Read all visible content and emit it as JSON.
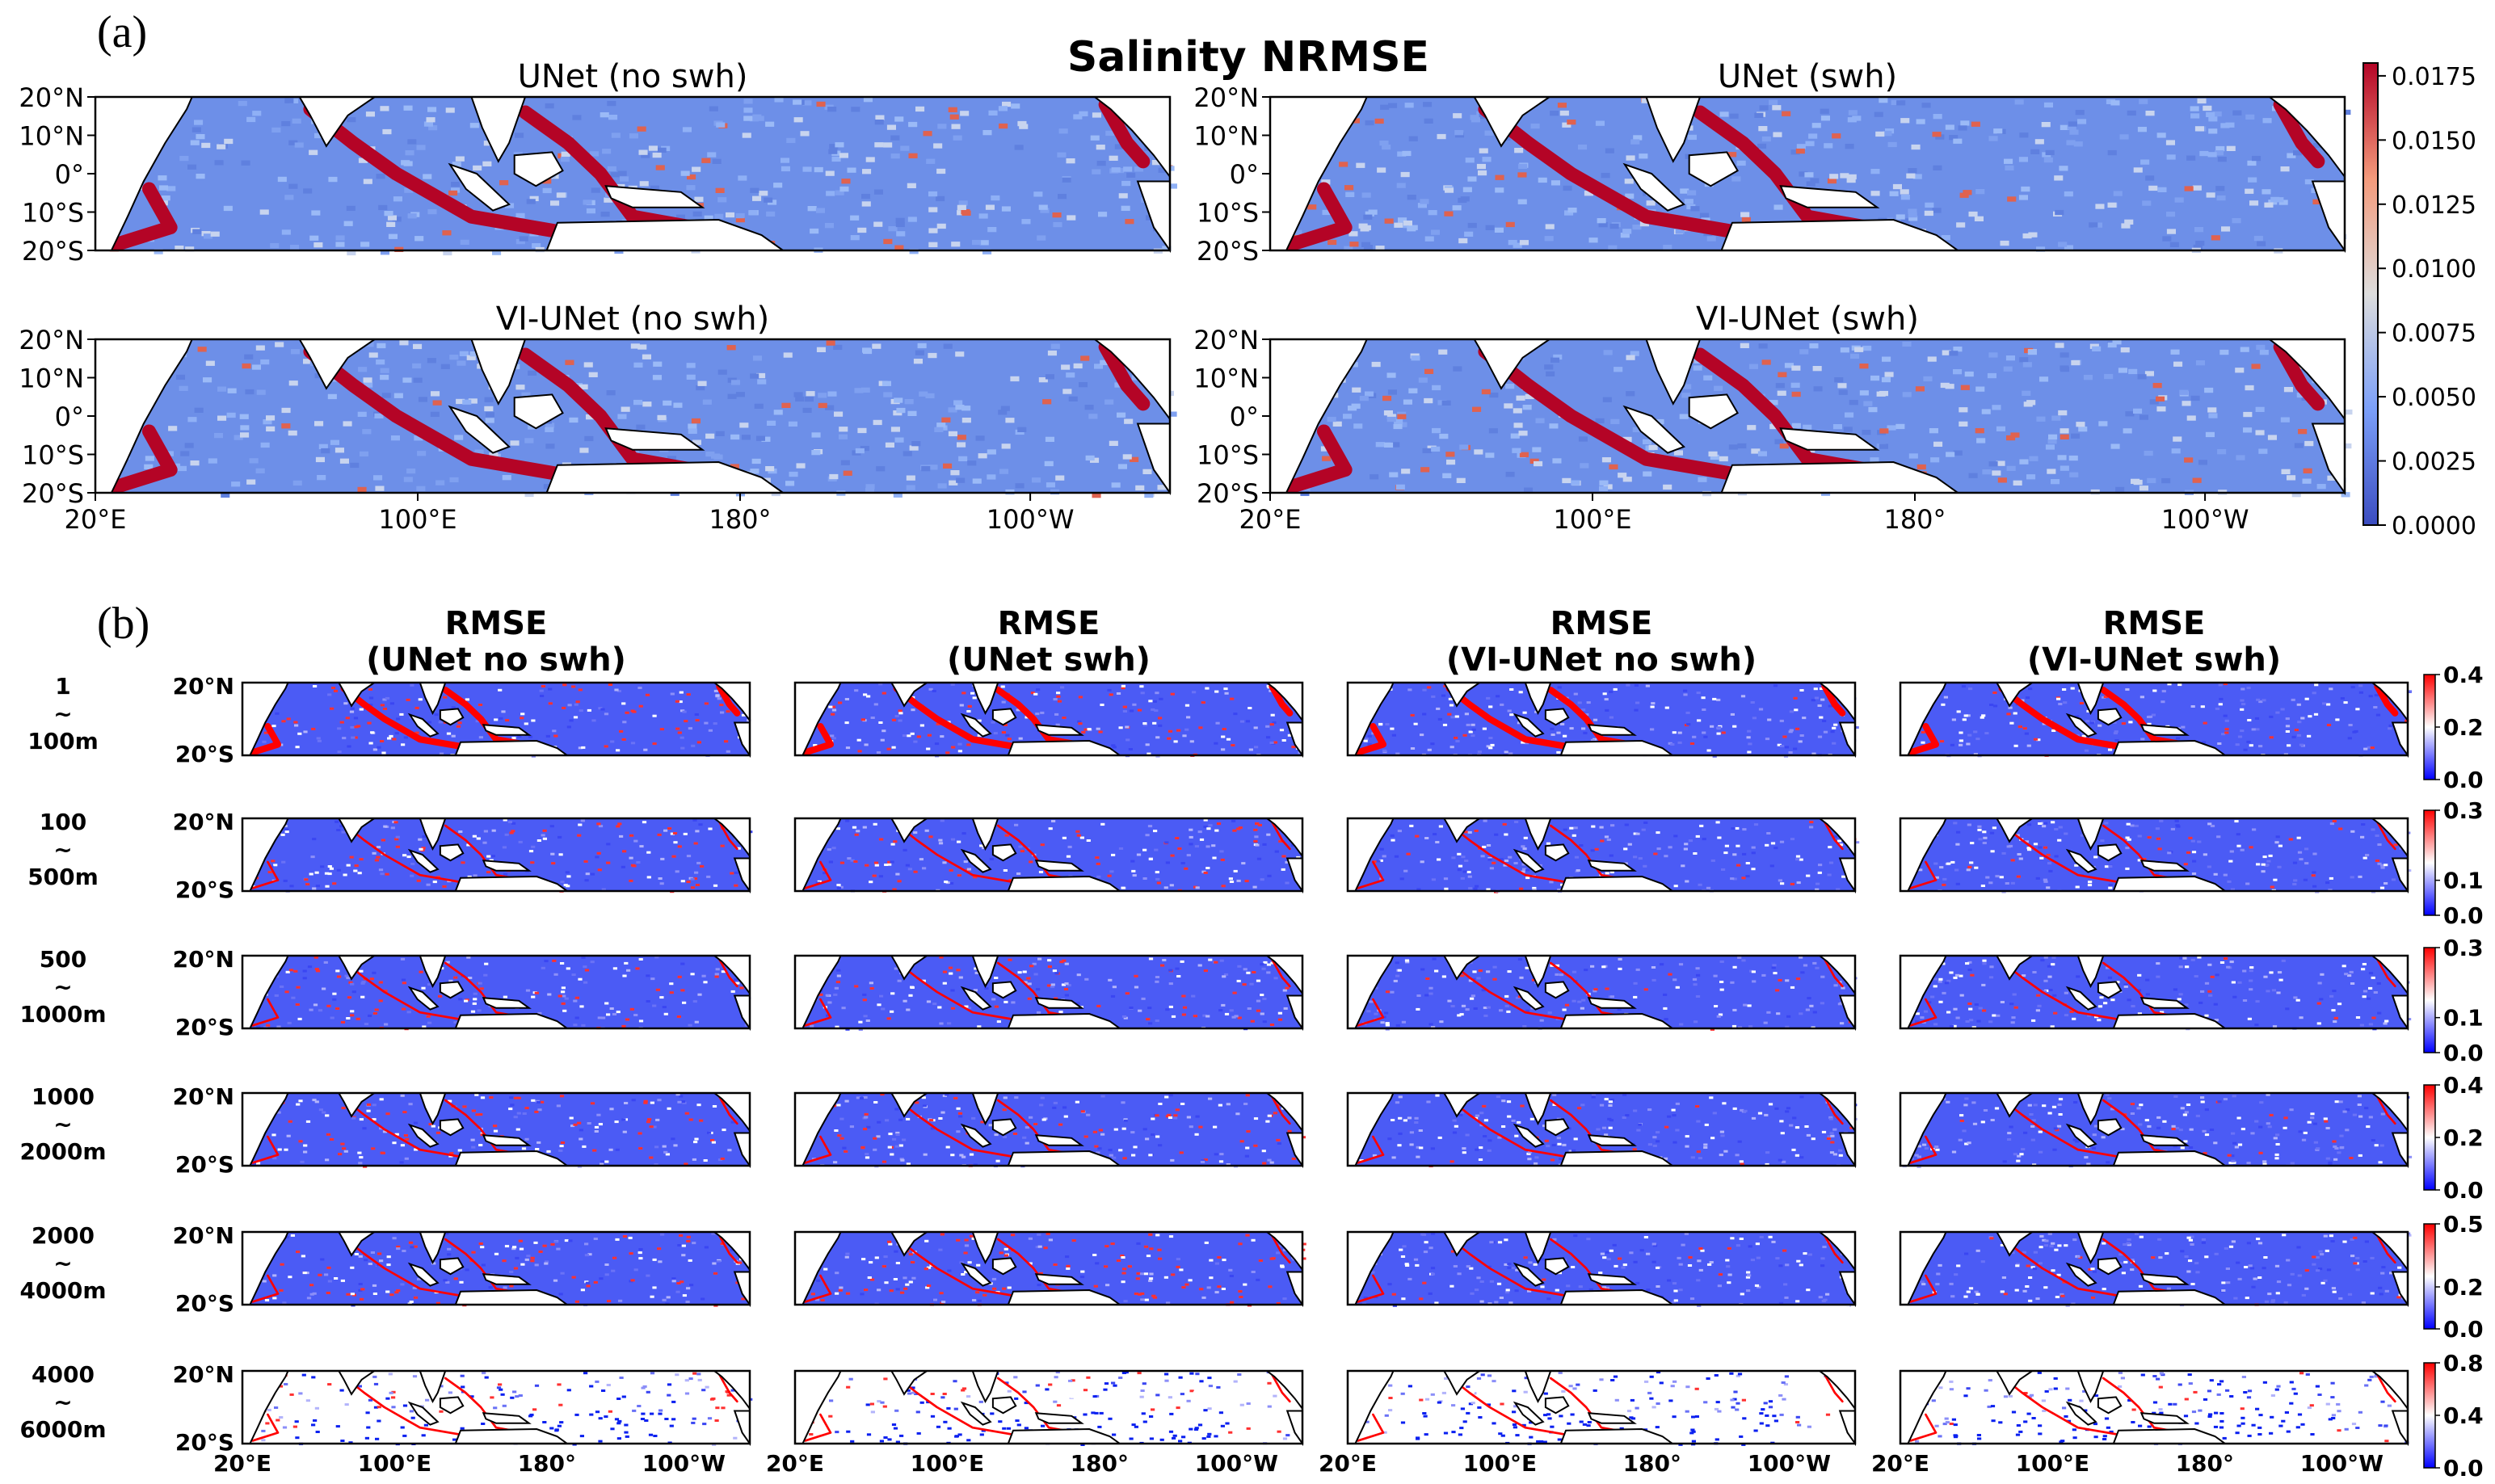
{
  "panel_a": {
    "label": "(a)",
    "title": "Salinity  NRMSE",
    "x_ticks": [
      "20°E",
      "100°E",
      "180°",
      "100°W"
    ],
    "y_ticks": [
      "20°N",
      "10°N",
      "0°",
      "10°S",
      "20°S"
    ],
    "maps": [
      {
        "title": "UNet (no swh)"
      },
      {
        "title": "UNet (swh)"
      },
      {
        "title": "VI-UNet (no swh)"
      },
      {
        "title": "VI-UNet (swh)"
      }
    ],
    "colorbar": {
      "ticks": [
        "0.0000",
        "0.0025",
        "0.0050",
        "0.0075",
        "0.0100",
        "0.0125",
        "0.0150",
        "0.0175"
      ],
      "colors": [
        "#3b4cc0",
        "#dddddd",
        "#b40426"
      ]
    }
  },
  "panel_b": {
    "label": "(b)",
    "columns": [
      {
        "title_top": "RMSE",
        "title_bottom": "(UNet no swh)"
      },
      {
        "title_top": "RMSE",
        "title_bottom": "(UNet swh)"
      },
      {
        "title_top": "RMSE",
        "title_bottom": "(VI-UNet no swh)"
      },
      {
        "title_top": "RMSE",
        "title_bottom": "(VI-UNet swh)"
      }
    ],
    "y_ticks": [
      "20°N",
      "20°S"
    ],
    "x_ticks": [
      "20°E",
      "100°E",
      "180°",
      "100°W"
    ],
    "rows": [
      {
        "depth_top": "1",
        "depth_mid": "~",
        "depth_bottom": "100m",
        "cbar_ticks": [
          "0.0",
          "0.2",
          "0.4"
        ]
      },
      {
        "depth_top": "100",
        "depth_mid": "~",
        "depth_bottom": "500m",
        "cbar_ticks": [
          "0.0",
          "0.1",
          "0.3"
        ]
      },
      {
        "depth_top": "500",
        "depth_mid": "~",
        "depth_bottom": "1000m",
        "cbar_ticks": [
          "0.0",
          "0.1",
          "0.3"
        ]
      },
      {
        "depth_top": "1000",
        "depth_mid": "~",
        "depth_bottom": "2000m",
        "cbar_ticks": [
          "0.0",
          "0.2",
          "0.4"
        ]
      },
      {
        "depth_top": "2000",
        "depth_mid": "~",
        "depth_bottom": "4000m",
        "cbar_ticks": [
          "0.0",
          "0.2",
          "0.5"
        ]
      },
      {
        "depth_top": "4000",
        "depth_mid": "~",
        "depth_bottom": "6000m",
        "cbar_ticks": [
          "0.0",
          "0.4",
          "0.8"
        ]
      }
    ],
    "colorbar_colors": [
      "#0000ff",
      "#ffffff",
      "#ff0000"
    ]
  },
  "chart_data": [
    {
      "type": "heatmap",
      "title": "Salinity  NRMSE",
      "panels": [
        "UNet (no swh)",
        "UNet (swh)",
        "VI-UNet (no swh)",
        "VI-UNet (swh)"
      ],
      "x_ticks": [
        "20°E",
        "100°E",
        "180°",
        "100°W"
      ],
      "y_ticks": [
        "20°N",
        "10°N",
        "0°",
        "10°S",
        "20°S"
      ],
      "colorbar_range": [
        0.0,
        0.0175
      ],
      "colormap": "coolwarm"
    },
    {
      "type": "heatmap",
      "title": "RMSE",
      "panels": [
        "(UNet no swh)",
        "(UNet swh)",
        "(VI-UNet no swh)",
        "(VI-UNet swh)"
      ],
      "depth_ranges": [
        "1 ~ 100m",
        "100 ~ 500m",
        "500 ~ 1000m",
        "1000 ~ 2000m",
        "2000 ~ 4000m",
        "4000 ~ 6000m"
      ],
      "colorbar_max": [
        0.4,
        0.3,
        0.3,
        0.4,
        0.5,
        0.8
      ],
      "colormap": "bwr"
    }
  ]
}
